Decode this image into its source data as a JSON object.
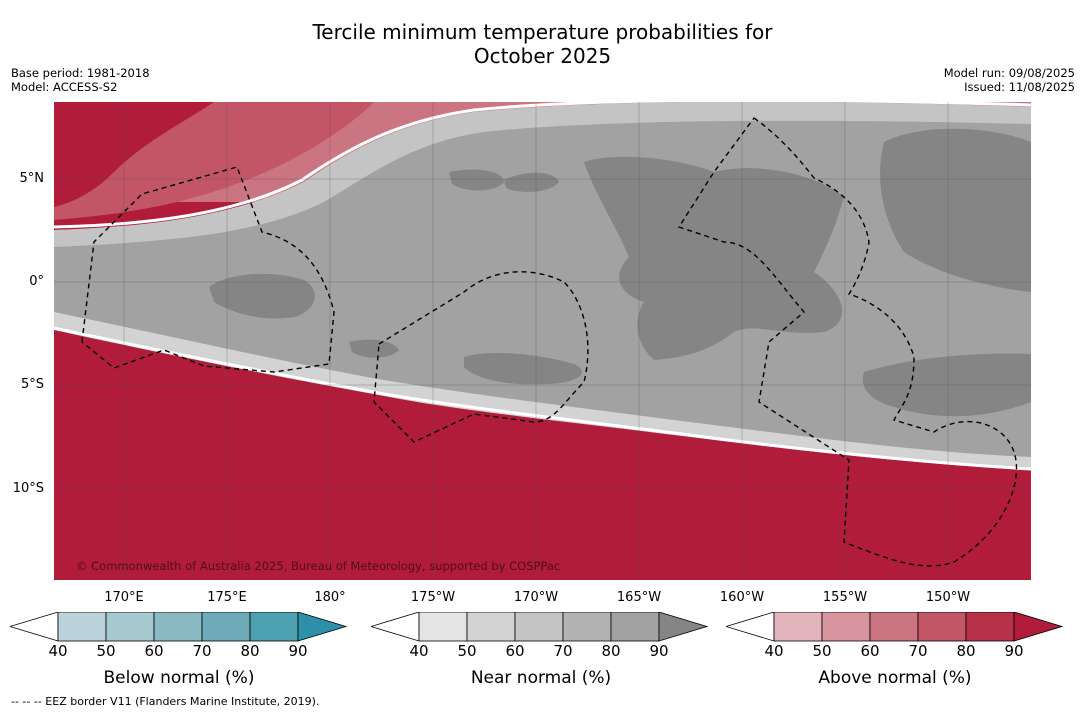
{
  "header": {
    "title_line1": "Tercile minimum temperature probabilities for",
    "title_line2": "October 2025",
    "base_period": "Base period: 1981-2018",
    "model": "Model: ACCESS-S2",
    "model_run": "Model run: 09/08/2025",
    "issued": "Issued: 11/08/2025"
  },
  "map": {
    "lat_labels": [
      "5°N",
      "0°",
      "5°S",
      "10°S"
    ],
    "lon_labels": [
      "170°E",
      "175°E",
      "180°",
      "175°W",
      "170°W",
      "165°W",
      "160°W",
      "155°W",
      "150°W"
    ],
    "copyright": "© Commonwealth of Australia 2025, Bureau of Meteorology, supported by COSPPac"
  },
  "legend": {
    "ticks": [
      "40",
      "50",
      "60",
      "70",
      "80",
      "90"
    ],
    "below": {
      "label": "Below normal (%)",
      "colors": [
        "#ffffff",
        "#bcd3db",
        "#a6c8cf",
        "#8ab8c3",
        "#6eabb9",
        "#4ca0b0",
        "#2e90a8"
      ]
    },
    "near": {
      "label": "Near normal (%)",
      "colors": [
        "#ffffff",
        "#e4e4e4",
        "#d3d3d3",
        "#c4c4c4",
        "#b3b3b3",
        "#a2a2a2",
        "#858585"
      ]
    },
    "above": {
      "label": "Above normal (%)",
      "colors": [
        "#ffffff",
        "#e2b4bb",
        "#d8959f",
        "#cc7582",
        "#c25566",
        "#b8334a",
        "#b01c3a"
      ]
    }
  },
  "footnote": "--  --  -- EEZ border V11 (Flanders Marine Institute, 2019)."
}
